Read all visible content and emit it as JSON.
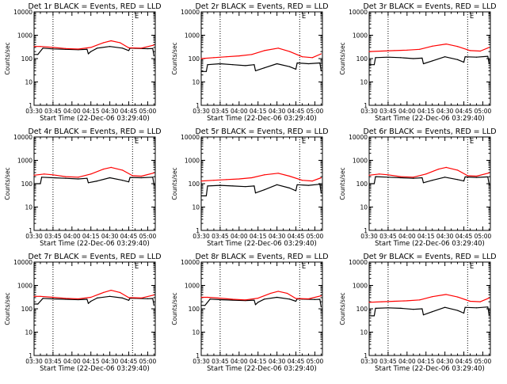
{
  "page": {
    "background": "#ffffff"
  },
  "colors": {
    "events": "#000000",
    "lld": "#ff0000",
    "axis": "#000000"
  },
  "shared": {
    "y_label": "Counts/sec",
    "x_label": "Start Time (22-Dec-06 03:29:40)",
    "x_ticks": [
      "03:30",
      "03:45",
      "04:00",
      "04:15",
      "04:30",
      "04:45",
      "05:00"
    ],
    "y_ticks": [
      "1",
      "10",
      "100",
      "1000",
      "10000"
    ],
    "marker_glyph": "E"
  },
  "chart_data": [
    {
      "type": "line",
      "title": "Det 1r BLACK = Events, RED = LLD",
      "xlim": [
        "03:30",
        "05:06"
      ],
      "ylim": [
        1,
        10000
      ],
      "yscale": "log",
      "grid": false,
      "y_tick_labels": [
        "1",
        "10",
        "100",
        "1000",
        "10000"
      ],
      "vlines": [
        "03:45",
        "04:48"
      ],
      "markers": [
        {
          "label": "E",
          "x": "04:49"
        }
      ],
      "series": [
        {
          "color": "#000000",
          "x": [
            "03:30",
            "03:33",
            "03:37",
            "03:45",
            "03:55",
            "04:05",
            "04:12",
            "04:13",
            "04:15",
            "04:20",
            "04:30",
            "04:40",
            "04:45",
            "04:46",
            "04:50",
            "05:00",
            "05:04",
            "05:05"
          ],
          "values": [
            150,
            150,
            280,
            260,
            250,
            240,
            250,
            160,
            200,
            280,
            330,
            280,
            220,
            280,
            275,
            265,
            270,
            130
          ]
        },
        {
          "color": "#ff0000",
          "x": [
            "03:30",
            "03:35",
            "03:45",
            "03:55",
            "04:05",
            "04:15",
            "04:25",
            "04:31",
            "04:38",
            "04:45",
            "04:55",
            "05:05"
          ],
          "values": [
            330,
            330,
            300,
            270,
            255,
            300,
            480,
            580,
            480,
            290,
            280,
            380
          ]
        }
      ]
    },
    {
      "type": "line",
      "title": "Det 2r BLACK = Events, RED = LLD",
      "xlim": [
        "03:30",
        "05:06"
      ],
      "ylim": [
        1,
        10000
      ],
      "yscale": "log",
      "grid": false,
      "y_tick_labels": [
        "1",
        "10",
        "100",
        "1000",
        "10000"
      ],
      "vlines": [
        "03:45",
        "04:48"
      ],
      "markers": [
        {
          "label": "E",
          "x": "04:49"
        }
      ],
      "series": [
        {
          "color": "#000000",
          "x": [
            "03:30",
            "03:34",
            "03:35",
            "03:45",
            "03:55",
            "04:05",
            "04:12",
            "04:13",
            "04:20",
            "04:30",
            "04:40",
            "04:45",
            "04:46",
            "04:55",
            "05:04",
            "05:05"
          ],
          "values": [
            28,
            28,
            55,
            60,
            55,
            50,
            55,
            30,
            40,
            60,
            45,
            35,
            65,
            60,
            65,
            30
          ]
        },
        {
          "color": "#ff0000",
          "x": [
            "03:30",
            "03:40",
            "03:50",
            "04:00",
            "04:10",
            "04:20",
            "04:31",
            "04:40",
            "04:50",
            "04:58",
            "05:05"
          ],
          "values": [
            100,
            110,
            120,
            130,
            150,
            220,
            280,
            200,
            120,
            110,
            160
          ]
        }
      ]
    },
    {
      "type": "line",
      "title": "Det 3r BLACK = Events, RED = LLD",
      "xlim": [
        "03:30",
        "05:06"
      ],
      "ylim": [
        1,
        10000
      ],
      "yscale": "log",
      "grid": false,
      "y_tick_labels": [
        "1",
        "10",
        "100",
        "1000",
        "10000"
      ],
      "vlines": [
        "03:45",
        "04:48"
      ],
      "markers": [
        {
          "label": "E",
          "x": "04:49"
        }
      ],
      "series": [
        {
          "color": "#000000",
          "x": [
            "03:30",
            "03:34",
            "03:35",
            "03:45",
            "03:55",
            "04:05",
            "04:12",
            "04:13",
            "04:20",
            "04:30",
            "04:40",
            "04:45",
            "04:46",
            "04:55",
            "05:04",
            "05:05"
          ],
          "values": [
            55,
            55,
            110,
            115,
            110,
            100,
            105,
            60,
            80,
            120,
            90,
            70,
            120,
            115,
            125,
            60
          ]
        },
        {
          "color": "#ff0000",
          "x": [
            "03:30",
            "03:40",
            "03:50",
            "04:00",
            "04:10",
            "04:20",
            "04:31",
            "04:40",
            "04:50",
            "04:58",
            "05:05"
          ],
          "values": [
            200,
            210,
            220,
            230,
            250,
            340,
            420,
            330,
            220,
            210,
            300
          ]
        }
      ]
    },
    {
      "type": "line",
      "title": "Det 4r BLACK = Events, RED = LLD",
      "xlim": [
        "03:30",
        "05:06"
      ],
      "ylim": [
        1,
        10000
      ],
      "yscale": "log",
      "grid": false,
      "y_tick_labels": [
        "1",
        "10",
        "100",
        "1000",
        "10000"
      ],
      "vlines": [
        "03:45",
        "04:48"
      ],
      "markers": [
        {
          "label": "E",
          "x": "04:49"
        }
      ],
      "series": [
        {
          "color": "#000000",
          "x": [
            "03:30",
            "03:35",
            "03:36",
            "03:45",
            "03:55",
            "04:05",
            "04:12",
            "04:13",
            "04:20",
            "04:30",
            "04:40",
            "04:45",
            "04:46",
            "04:55",
            "05:04",
            "05:05"
          ],
          "values": [
            100,
            100,
            190,
            180,
            170,
            160,
            170,
            110,
            130,
            180,
            140,
            120,
            185,
            180,
            190,
            90
          ]
        },
        {
          "color": "#ff0000",
          "x": [
            "03:30",
            "03:38",
            "03:45",
            "03:55",
            "04:05",
            "04:15",
            "04:25",
            "04:31",
            "04:40",
            "04:48",
            "04:55",
            "05:05"
          ],
          "values": [
            230,
            260,
            240,
            200,
            190,
            260,
            420,
            500,
            380,
            220,
            210,
            290
          ]
        }
      ]
    },
    {
      "type": "line",
      "title": "Det 5r BLACK = Events, RED = LLD",
      "xlim": [
        "03:30",
        "05:06"
      ],
      "ylim": [
        1,
        10000
      ],
      "yscale": "log",
      "grid": false,
      "y_tick_labels": [
        "1",
        "10",
        "100",
        "1000",
        "10000"
      ],
      "vlines": [
        "03:45",
        "04:48"
      ],
      "markers": [
        {
          "label": "E",
          "x": "04:49"
        }
      ],
      "series": [
        {
          "color": "#000000",
          "x": [
            "03:30",
            "03:34",
            "03:35",
            "03:45",
            "03:55",
            "04:05",
            "04:12",
            "04:13",
            "04:20",
            "04:30",
            "04:40",
            "04:45",
            "04:46",
            "04:55",
            "05:04",
            "05:05"
          ],
          "values": [
            30,
            30,
            80,
            85,
            80,
            75,
            80,
            40,
            55,
            90,
            65,
            50,
            90,
            85,
            95,
            40
          ]
        },
        {
          "color": "#ff0000",
          "x": [
            "03:30",
            "03:40",
            "03:50",
            "04:00",
            "04:10",
            "04:20",
            "04:31",
            "04:40",
            "04:50",
            "04:58",
            "05:05"
          ],
          "values": [
            130,
            140,
            150,
            160,
            180,
            240,
            280,
            210,
            140,
            130,
            180
          ]
        }
      ]
    },
    {
      "type": "line",
      "title": "Det 6r BLACK = Events, RED = LLD",
      "xlim": [
        "03:30",
        "05:06"
      ],
      "ylim": [
        1,
        10000
      ],
      "yscale": "log",
      "grid": false,
      "y_tick_labels": [
        "1",
        "10",
        "100",
        "1000",
        "10000"
      ],
      "vlines": [
        "03:45",
        "04:48"
      ],
      "markers": [
        {
          "label": "E",
          "x": "04:49"
        }
      ],
      "series": [
        {
          "color": "#000000",
          "x": [
            "03:30",
            "03:34",
            "03:35",
            "03:45",
            "03:55",
            "04:05",
            "04:12",
            "04:13",
            "04:20",
            "04:30",
            "04:40",
            "04:45",
            "04:46",
            "04:55",
            "05:04",
            "05:05"
          ],
          "values": [
            100,
            100,
            200,
            190,
            180,
            170,
            180,
            110,
            140,
            190,
            150,
            130,
            195,
            185,
            195,
            95
          ]
        },
        {
          "color": "#ff0000",
          "x": [
            "03:30",
            "03:38",
            "03:45",
            "03:55",
            "04:05",
            "04:15",
            "04:25",
            "04:31",
            "04:40",
            "04:48",
            "04:55",
            "05:05"
          ],
          "values": [
            230,
            260,
            240,
            200,
            190,
            260,
            420,
            500,
            380,
            220,
            210,
            290
          ]
        }
      ]
    },
    {
      "type": "line",
      "title": "Det 7r BLACK = Events, RED = LLD",
      "xlim": [
        "03:30",
        "05:06"
      ],
      "ylim": [
        1,
        10000
      ],
      "yscale": "log",
      "grid": false,
      "y_tick_labels": [
        "1",
        "10",
        "100",
        "1000",
        "10000"
      ],
      "vlines": [
        "03:45",
        "04:48"
      ],
      "markers": [
        {
          "label": "E",
          "x": "04:49"
        }
      ],
      "series": [
        {
          "color": "#000000",
          "x": [
            "03:30",
            "03:33",
            "03:37",
            "03:45",
            "03:55",
            "04:05",
            "04:12",
            "04:13",
            "04:15",
            "04:20",
            "04:30",
            "04:40",
            "04:45",
            "04:46",
            "04:50",
            "05:00",
            "05:04",
            "05:05"
          ],
          "values": [
            160,
            160,
            280,
            265,
            255,
            245,
            255,
            170,
            210,
            290,
            340,
            290,
            230,
            285,
            280,
            270,
            275,
            140
          ]
        },
        {
          "color": "#ff0000",
          "x": [
            "03:30",
            "03:35",
            "03:45",
            "03:55",
            "04:05",
            "04:15",
            "04:25",
            "04:31",
            "04:38",
            "04:45",
            "04:55",
            "05:05"
          ],
          "values": [
            340,
            340,
            310,
            280,
            265,
            310,
            500,
            620,
            500,
            300,
            290,
            390
          ]
        }
      ]
    },
    {
      "type": "line",
      "title": "Det 8r BLACK = Events, RED = LLD",
      "xlim": [
        "03:30",
        "05:06"
      ],
      "ylim": [
        1,
        10000
      ],
      "yscale": "log",
      "grid": false,
      "y_tick_labels": [
        "1",
        "10",
        "100",
        "1000",
        "10000"
      ],
      "vlines": [
        "03:45",
        "04:48"
      ],
      "markers": [
        {
          "label": "E",
          "x": "04:49"
        }
      ],
      "series": [
        {
          "color": "#000000",
          "x": [
            "03:30",
            "03:33",
            "03:37",
            "03:45",
            "03:55",
            "04:05",
            "04:12",
            "04:13",
            "04:15",
            "04:20",
            "04:30",
            "04:40",
            "04:45",
            "04:46",
            "04:50",
            "05:00",
            "05:04",
            "05:05"
          ],
          "values": [
            140,
            140,
            260,
            245,
            235,
            225,
            235,
            150,
            190,
            260,
            310,
            260,
            210,
            265,
            260,
            250,
            255,
            120
          ]
        },
        {
          "color": "#ff0000",
          "x": [
            "03:30",
            "03:35",
            "03:45",
            "03:55",
            "04:05",
            "04:15",
            "04:25",
            "04:31",
            "04:38",
            "04:45",
            "04:55",
            "05:05"
          ],
          "values": [
            310,
            310,
            285,
            255,
            240,
            285,
            460,
            560,
            460,
            275,
            265,
            360
          ]
        }
      ]
    },
    {
      "type": "line",
      "title": "Det 9r BLACK = Events, RED = LLD",
      "xlim": [
        "03:30",
        "05:06"
      ],
      "ylim": [
        1,
        10000
      ],
      "yscale": "log",
      "grid": false,
      "y_tick_labels": [
        "1",
        "10",
        "100",
        "1000",
        "10000"
      ],
      "vlines": [
        "03:45",
        "04:48"
      ],
      "markers": [
        {
          "label": "E",
          "x": "04:49"
        }
      ],
      "series": [
        {
          "color": "#000000",
          "x": [
            "03:30",
            "03:34",
            "03:35",
            "03:45",
            "03:55",
            "04:05",
            "04:12",
            "04:13",
            "04:20",
            "04:30",
            "04:40",
            "04:45",
            "04:46",
            "04:55",
            "05:04",
            "05:05"
          ],
          "values": [
            50,
            50,
            105,
            110,
            105,
            95,
            100,
            55,
            75,
            115,
            85,
            65,
            115,
            110,
            120,
            55
          ]
        },
        {
          "color": "#ff0000",
          "x": [
            "03:30",
            "03:40",
            "03:50",
            "04:00",
            "04:10",
            "04:20",
            "04:31",
            "04:40",
            "04:50",
            "04:58",
            "05:05"
          ],
          "values": [
            190,
            200,
            210,
            220,
            240,
            330,
            410,
            320,
            210,
            200,
            290
          ]
        }
      ]
    }
  ]
}
